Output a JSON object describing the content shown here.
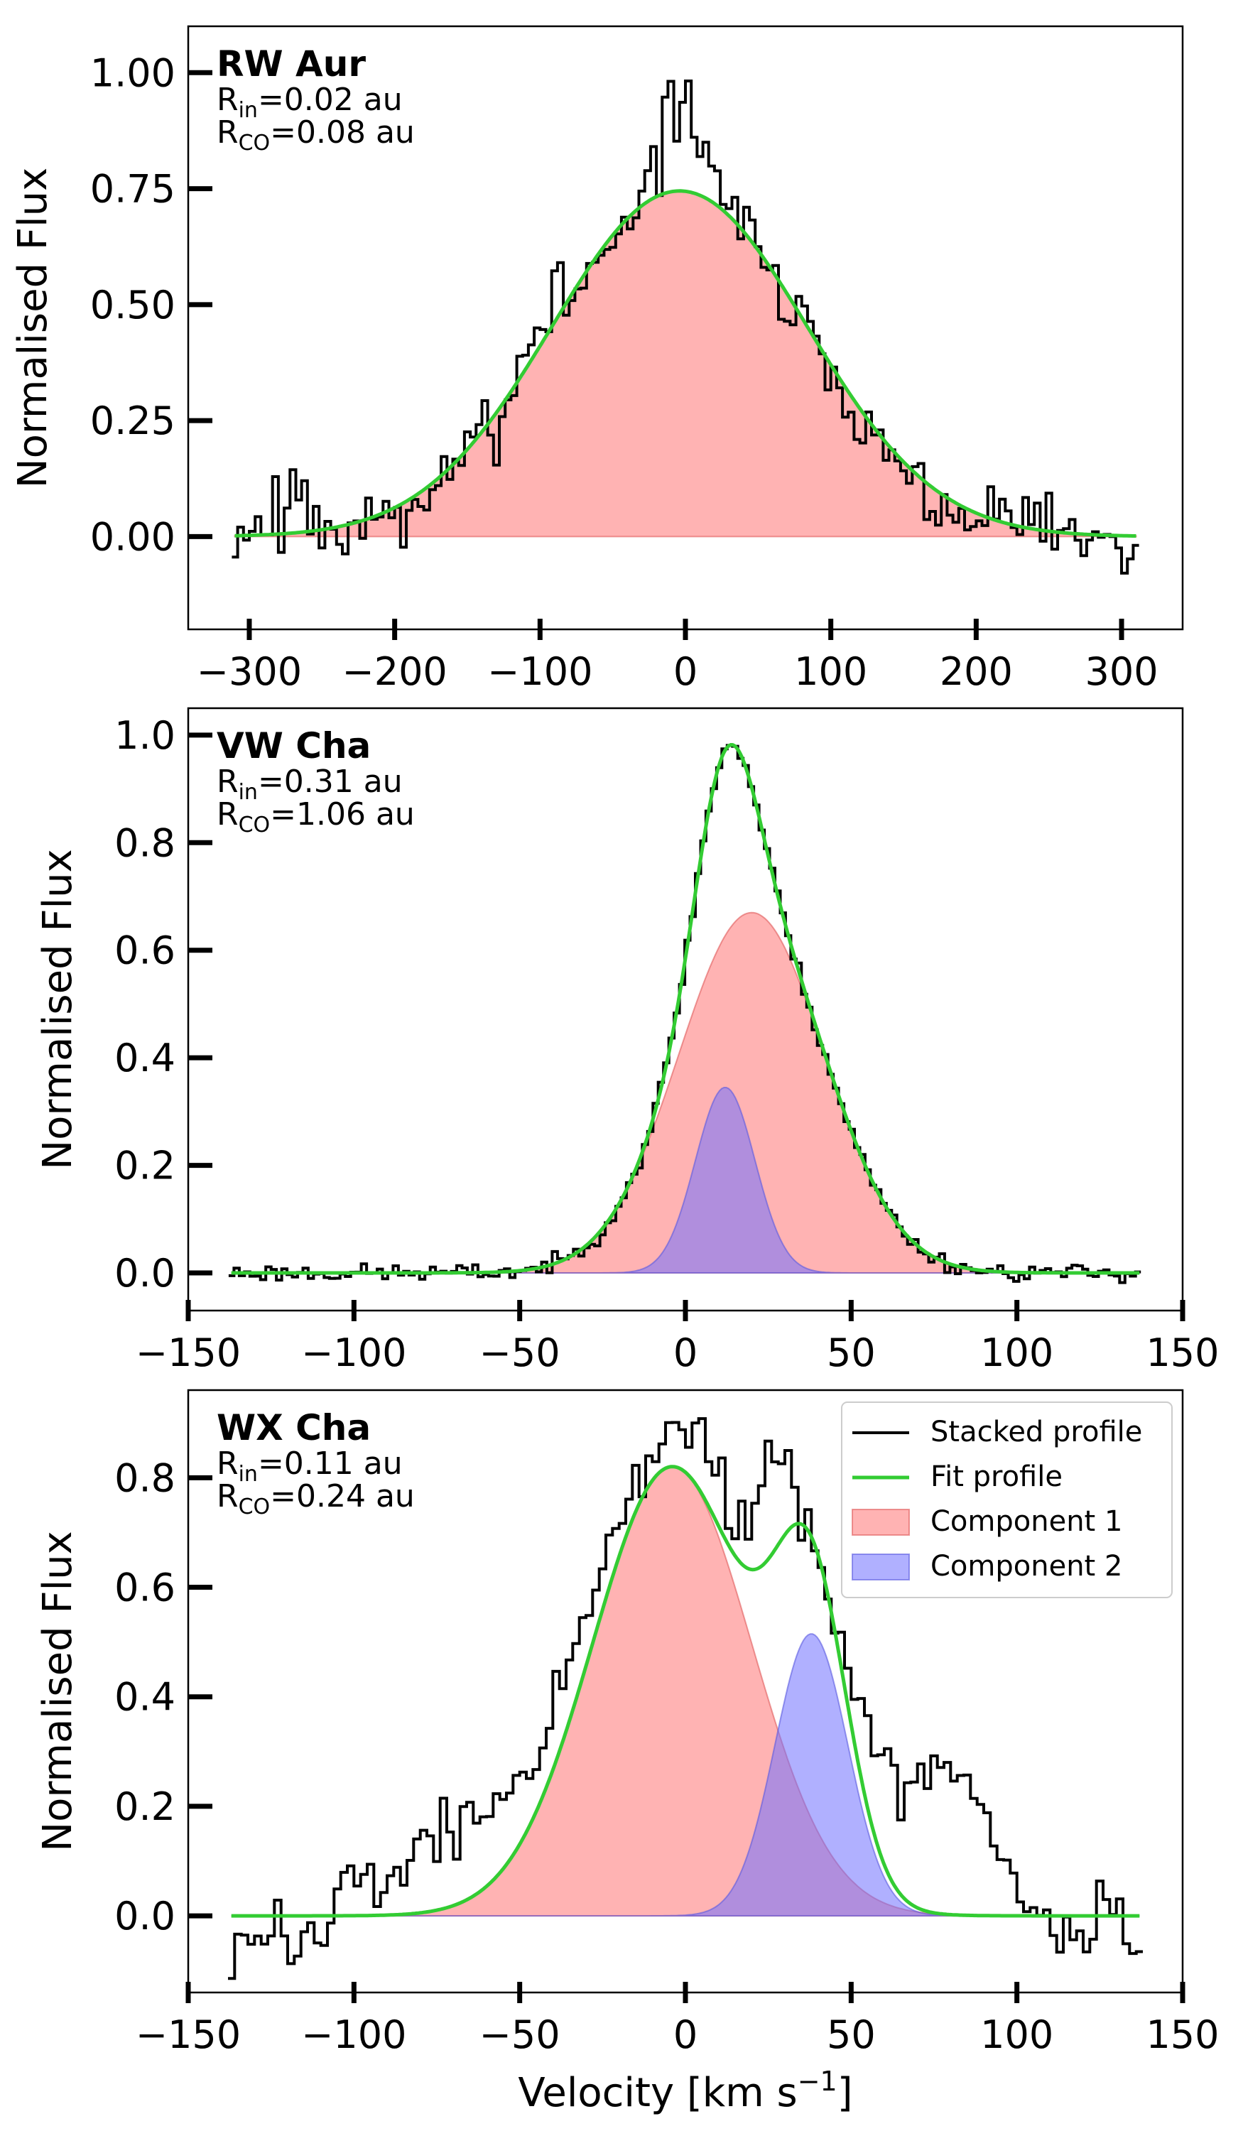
{
  "chart_data": [
    {
      "type": "line",
      "title": "RW Aur",
      "inner_radius_label": "R",
      "inner_radius_subscript": "in",
      "inner_radius_value": "=0.02 au",
      "co_radius_label": "R",
      "co_radius_subscript": "CO",
      "co_radius_value": "=0.08 au",
      "xlabel": "",
      "ylabel": "Normalised Flux",
      "xlim": [
        -342,
        342
      ],
      "ylim": [
        -0.2,
        1.1
      ],
      "xticks": [
        -300,
        -200,
        -100,
        0,
        100,
        200,
        300
      ],
      "xtick_labels": [
        "−300",
        "−200",
        "−100",
        "0",
        "100",
        "200",
        "300"
      ],
      "yticks": [
        0.0,
        0.25,
        0.5,
        0.75,
        1.0
      ],
      "ytick_labels": [
        "0.00",
        "0.25",
        "0.50",
        "0.75",
        "1.00"
      ],
      "stacked_profile": {
        "x_range": [
          -310,
          310
        ],
        "step": 4,
        "anchors": [
          [
            -310,
            0.0
          ],
          [
            -290,
            0.05
          ],
          [
            -270,
            0.08
          ],
          [
            -250,
            0.03
          ],
          [
            -230,
            0.02
          ],
          [
            -210,
            0.06
          ],
          [
            -190,
            0.05
          ],
          [
            -170,
            0.12
          ],
          [
            -150,
            0.2
          ],
          [
            -130,
            0.28
          ],
          [
            -110,
            0.38
          ],
          [
            -90,
            0.48
          ],
          [
            -70,
            0.55
          ],
          [
            -50,
            0.62
          ],
          [
            -30,
            0.7
          ],
          [
            -20,
            0.85
          ],
          [
            -10,
            0.97
          ],
          [
            0,
            0.93
          ],
          [
            10,
            0.85
          ],
          [
            30,
            0.72
          ],
          [
            50,
            0.6
          ],
          [
            70,
            0.5
          ],
          [
            90,
            0.42
          ],
          [
            110,
            0.32
          ],
          [
            130,
            0.22
          ],
          [
            150,
            0.14
          ],
          [
            170,
            0.08
          ],
          [
            190,
            0.02
          ],
          [
            210,
            0.04
          ],
          [
            230,
            0.03
          ],
          [
            250,
            0.0
          ],
          [
            270,
            -0.02
          ],
          [
            290,
            0.0
          ],
          [
            310,
            -0.05
          ]
        ],
        "noise": 0.035,
        "seed": 11
      },
      "fit_profile": {
        "gaussians": [
          {
            "amp": 0.745,
            "mu": -4,
            "sigma": 88
          }
        ]
      },
      "components": [
        {
          "name": "Component 1",
          "amp": 0.745,
          "mu": -4,
          "sigma": 88,
          "fill": "#ff8080",
          "opacity": 0.6
        }
      ],
      "colors": {
        "stacked": "#000000",
        "fit": "#33cc33"
      }
    },
    {
      "type": "line",
      "title": "VW Cha",
      "inner_radius_label": "R",
      "inner_radius_subscript": "in",
      "inner_radius_value": "=0.31 au",
      "co_radius_label": "R",
      "co_radius_subscript": "CO",
      "co_radius_value": "=1.06 au",
      "xlabel": "",
      "ylabel": "Normalised Flux",
      "xlim": [
        -150,
        150
      ],
      "ylim": [
        -0.07,
        1.05
      ],
      "xticks": [
        -150,
        -100,
        -50,
        0,
        50,
        100,
        150
      ],
      "xtick_labels": [
        "−150",
        "−100",
        "−50",
        "0",
        "50",
        "100",
        "150"
      ],
      "yticks": [
        0.0,
        0.2,
        0.4,
        0.6,
        0.8,
        1.0
      ],
      "ytick_labels": [
        "0.0",
        "0.2",
        "0.4",
        "0.6",
        "0.8",
        "1.0"
      ],
      "stacked_profile": {
        "x_range": [
          -137,
          137
        ],
        "step": 1.6,
        "follow_fit": true,
        "noise": 0.008,
        "seed": 23
      },
      "fit_profile": {
        "gaussians": [
          {
            "amp": 0.67,
            "mu": 20,
            "sigma": 22
          },
          {
            "amp": 0.345,
            "mu": 12,
            "sigma": 9
          }
        ]
      },
      "components": [
        {
          "name": "Component 1",
          "amp": 0.67,
          "mu": 20,
          "sigma": 22,
          "fill": "#ff8080",
          "opacity": 0.6
        },
        {
          "name": "Component 2",
          "amp": 0.345,
          "mu": 12,
          "sigma": 9,
          "fill": "#6f6fff",
          "opacity": 0.55
        }
      ],
      "colors": {
        "stacked": "#000000",
        "fit": "#33cc33"
      }
    },
    {
      "type": "line",
      "title": "WX Cha",
      "inner_radius_label": "R",
      "inner_radius_subscript": "in",
      "inner_radius_value": "=0.11 au",
      "co_radius_label": "R",
      "co_radius_subscript": "CO",
      "co_radius_value": "=0.24 au",
      "xlabel": "Velocity [km s−1]",
      "ylabel": "Normalised Flux",
      "xlim": [
        -150,
        150
      ],
      "ylim": [
        -0.14,
        0.96
      ],
      "xticks": [
        -150,
        -100,
        -50,
        0,
        50,
        100,
        150
      ],
      "xtick_labels": [
        "−150",
        "−100",
        "−50",
        "0",
        "50",
        "100",
        "150"
      ],
      "yticks": [
        0.0,
        0.2,
        0.4,
        0.6,
        0.8
      ],
      "ytick_labels": [
        "0.0",
        "0.2",
        "0.4",
        "0.6",
        "0.8"
      ],
      "legend": {
        "position": "top-right",
        "entries": [
          "Stacked profile",
          "Fit profile",
          "Component 1",
          "Component 2"
        ]
      },
      "stacked_profile": {
        "x_range": [
          -137,
          137
        ],
        "step": 2,
        "anchors": [
          [
            -137,
            0.0
          ],
          [
            -130,
            -0.05
          ],
          [
            -120,
            -0.05
          ],
          [
            -110,
            -0.04
          ],
          [
            -100,
            0.08
          ],
          [
            -90,
            0.05
          ],
          [
            -80,
            0.12
          ],
          [
            -70,
            0.18
          ],
          [
            -60,
            0.2
          ],
          [
            -50,
            0.24
          ],
          [
            -45,
            0.28
          ],
          [
            -40,
            0.35
          ],
          [
            -35,
            0.45
          ],
          [
            -30,
            0.55
          ],
          [
            -25,
            0.65
          ],
          [
            -20,
            0.72
          ],
          [
            -15,
            0.78
          ],
          [
            -10,
            0.84
          ],
          [
            -5,
            0.87
          ],
          [
            0,
            0.85
          ],
          [
            5,
            0.88
          ],
          [
            10,
            0.8
          ],
          [
            15,
            0.72
          ],
          [
            20,
            0.7
          ],
          [
            25,
            0.85
          ],
          [
            30,
            0.86
          ],
          [
            35,
            0.72
          ],
          [
            40,
            0.65
          ],
          [
            45,
            0.5
          ],
          [
            50,
            0.42
          ],
          [
            55,
            0.35
          ],
          [
            60,
            0.28
          ],
          [
            65,
            0.22
          ],
          [
            70,
            0.25
          ],
          [
            75,
            0.25
          ],
          [
            80,
            0.28
          ],
          [
            85,
            0.25
          ],
          [
            90,
            0.2
          ],
          [
            95,
            0.1
          ],
          [
            100,
            0.05
          ],
          [
            110,
            0.0
          ],
          [
            120,
            -0.02
          ],
          [
            130,
            0.0
          ],
          [
            137,
            -0.05
          ]
        ],
        "noise": 0.025,
        "seed": 37
      },
      "fit_profile": {
        "gaussians": [
          {
            "amp": 0.82,
            "mu": -4,
            "sigma": 24
          },
          {
            "amp": 0.515,
            "mu": 38,
            "sigma": 11
          }
        ]
      },
      "components": [
        {
          "name": "Component 1",
          "amp": 0.82,
          "mu": -4,
          "sigma": 24,
          "fill": "#ff8080",
          "opacity": 0.6
        },
        {
          "name": "Component 2",
          "amp": 0.515,
          "mu": 38,
          "sigma": 11,
          "fill": "#6f6fff",
          "opacity": 0.55
        }
      ],
      "colors": {
        "stacked": "#000000",
        "fit": "#33cc33"
      }
    }
  ]
}
